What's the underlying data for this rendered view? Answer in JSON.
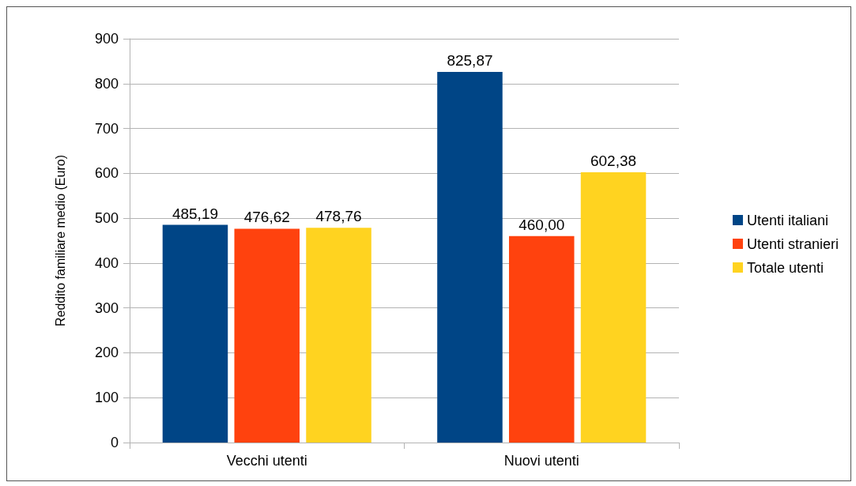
{
  "chart_data": {
    "type": "bar",
    "ylabel": "Reddito familiare medio (Euro)",
    "categories": [
      "Vecchi utenti",
      "Nuovi utenti"
    ],
    "series": [
      {
        "name": "Utenti italiani",
        "color": "#004586",
        "values": [
          485.19,
          825.87
        ],
        "value_labels": [
          "485,19",
          "825,87"
        ]
      },
      {
        "name": "Utenti stranieri",
        "color": "#ff420e",
        "values": [
          476.62,
          460.0
        ],
        "value_labels": [
          "476,62",
          "460,00"
        ]
      },
      {
        "name": "Totale utenti",
        "color": "#ffd320",
        "values": [
          478.76,
          602.38
        ],
        "value_labels": [
          "478,76",
          "602,38"
        ]
      }
    ],
    "ylim": [
      0,
      900
    ],
    "yticks": [
      0,
      100,
      200,
      300,
      400,
      500,
      600,
      700,
      800,
      900
    ],
    "grid": "y",
    "legend": "right"
  }
}
